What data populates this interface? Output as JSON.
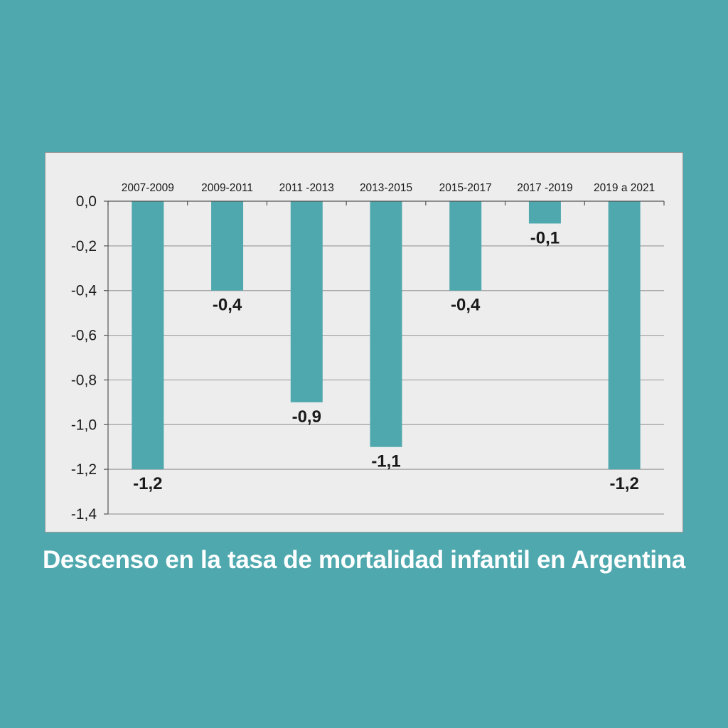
{
  "colors": {
    "background": "#4ea8ae",
    "panel": "#ededed",
    "bar": "#4ea8ae",
    "grid": "#a0a0a0",
    "text": "#1a1a1a",
    "title": "#ffffff"
  },
  "chart_data": {
    "type": "bar",
    "title": "Descenso en la tasa de mortalidad infantil en Argentina",
    "xlabel": "",
    "ylabel": "",
    "categories": [
      "2007-2009",
      "2009-2011",
      "2011 -2013",
      "2013-2015",
      "2015-2017",
      "2017 -2019",
      "2019 a 2021"
    ],
    "values": [
      -1.2,
      -0.4,
      -0.9,
      -1.1,
      -0.4,
      -0.1,
      -1.2
    ],
    "data_labels": [
      "-1,2",
      "-0,4",
      "-0,9",
      "-1,1",
      "-0,4",
      "-0,1",
      "-1,2"
    ],
    "ylim": [
      -1.4,
      0
    ],
    "yticks": [
      0,
      -0.2,
      -0.4,
      -0.6,
      -0.8,
      -1.0,
      -1.2,
      -1.4
    ],
    "ytick_labels": [
      "0,0",
      "-0,2",
      "-0,4",
      "-0,6",
      "-0,8",
      "-1,0",
      "-1,2",
      "-1,4"
    ],
    "category_axis_position": "top",
    "grid": true,
    "legend": "none"
  }
}
